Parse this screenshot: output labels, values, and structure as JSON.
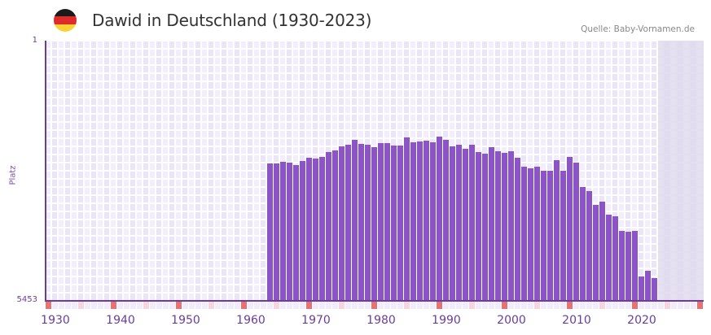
{
  "header": {
    "title": "Dawid in Deutschland (1930-2023)",
    "source": "Quelle: Baby-Vornamen.de",
    "flag": {
      "name": "germany-flag-icon",
      "colors": [
        "#1a1a1a",
        "#dd2a2a",
        "#fdd034"
      ]
    }
  },
  "colors": {
    "bar": "#8b55c8",
    "axis": "#6a3d9a",
    "grid_a": "#f2eefb",
    "grid_b": "#ebe5f8",
    "future_shade": "#e4dff0",
    "decade_marker": "#e57373",
    "halfdecade_marker": "#f6d5dc",
    "year_marker": "#f0ecfa"
  },
  "chart_data": {
    "type": "bar",
    "title": "Dawid in Deutschland (1930-2023)",
    "xlabel": "",
    "ylabel": "Platz",
    "y_inverted": true,
    "ylim": [
      5453,
      1
    ],
    "ytick_labels": [
      "1",
      "5453"
    ],
    "x_range": [
      1928,
      2028
    ],
    "xtick_labels": [
      "1930",
      "1940",
      "1950",
      "1960",
      "1970",
      "1980",
      "1990",
      "2000",
      "2010",
      "2020"
    ],
    "grid": true,
    "shaded_future_from": 2022,
    "note": "values are bar-top pixel heights read from the chart (rank scale, higher bar = better rank)",
    "categories": [
      1962,
      1963,
      1964,
      1965,
      1966,
      1967,
      1968,
      1969,
      1970,
      1971,
      1972,
      1973,
      1974,
      1975,
      1976,
      1977,
      1978,
      1979,
      1980,
      1981,
      1982,
      1983,
      1984,
      1985,
      1986,
      1987,
      1988,
      1989,
      1990,
      1991,
      1992,
      1993,
      1994,
      1995,
      1996,
      1997,
      1998,
      1999,
      2000,
      2001,
      2002,
      2003,
      2004,
      2005,
      2006,
      2007,
      2008,
      2009,
      2010,
      2011,
      2012,
      2013,
      2014,
      2015,
      2016,
      2017,
      2018,
      2019,
      2020,
      2021
    ],
    "values": [
      168,
      168,
      170,
      169,
      166,
      171,
      175,
      174,
      176,
      182,
      184,
      189,
      191,
      197,
      192,
      191,
      188,
      193,
      193,
      190,
      190,
      200,
      194,
      195,
      196,
      194,
      201,
      197,
      189,
      191,
      186,
      191,
      182,
      180,
      188,
      183,
      181,
      183,
      175,
      164,
      162,
      164,
      159,
      159,
      172,
      159,
      176,
      169,
      139,
      134,
      117,
      121,
      105,
      103,
      85,
      84,
      85,
      29,
      36,
      27
    ]
  },
  "axes": {
    "y_top": "1",
    "y_bottom": "5453",
    "y_title": "Platz",
    "x_ticks": [
      {
        "label": "1930",
        "year": 1930
      },
      {
        "label": "1940",
        "year": 1940
      },
      {
        "label": "1950",
        "year": 1950
      },
      {
        "label": "1960",
        "year": 1960
      },
      {
        "label": "1970",
        "year": 1970
      },
      {
        "label": "1980",
        "year": 1980
      },
      {
        "label": "1990",
        "year": 1990
      },
      {
        "label": "2000",
        "year": 2000
      },
      {
        "label": "2010",
        "year": 2010
      },
      {
        "label": "2020",
        "year": 2020
      }
    ]
  }
}
